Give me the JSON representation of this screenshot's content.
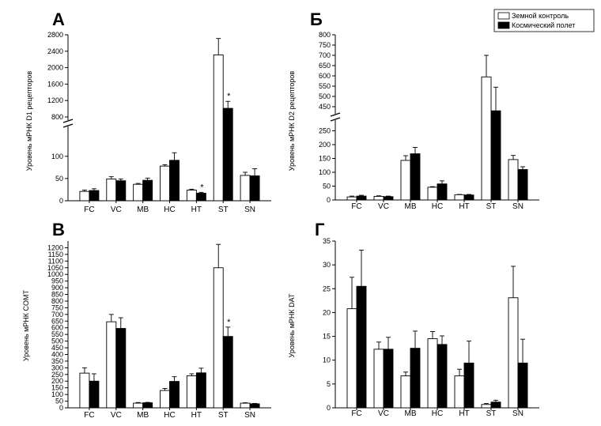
{
  "legend": {
    "items": [
      {
        "label": "Земной контроль",
        "fill": "#ffffff"
      },
      {
        "label": "Космический полет",
        "fill": "#000000"
      }
    ]
  },
  "chart_data": [
    {
      "panel": "A",
      "letter": "А",
      "type": "bar",
      "ylabel": "Уровень мРНК D1 рецепторов",
      "categories": [
        "FC",
        "VC",
        "MB",
        "HC",
        "HT",
        "ST",
        "SN"
      ],
      "axis_break": true,
      "lower_range": [
        0,
        160
      ],
      "lower_ticks": [
        0,
        50,
        100
      ],
      "upper_range": [
        800,
        2800
      ],
      "upper_ticks": [
        800,
        1200,
        1600,
        2000,
        2400,
        2800
      ],
      "series": [
        {
          "name": "Земной контроль",
          "values": [
            21,
            49,
            37,
            78,
            24,
            2310,
            57
          ],
          "errors": [
            3,
            5,
            2,
            3,
            2,
            400,
            7
          ]
        },
        {
          "name": "Космический полет",
          "values": [
            23,
            45,
            46,
            91,
            17,
            1010,
            56
          ],
          "errors": [
            4,
            4,
            5,
            17,
            2,
            170,
            16
          ]
        }
      ],
      "significance": [
        {
          "category": "HT",
          "series": 1,
          "mark": "*"
        },
        {
          "category": "ST",
          "series": 1,
          "mark": "*"
        }
      ]
    },
    {
      "panel": "B",
      "letter": "Б",
      "type": "bar",
      "ylabel": "Уровень мРНК D2 рецепторов",
      "categories": [
        "FC",
        "VC",
        "MB",
        "HC",
        "HT",
        "ST",
        "SN"
      ],
      "axis_break": true,
      "lower_range": [
        0,
        300
      ],
      "lower_ticks": [
        0,
        50,
        100,
        150,
        200,
        250
      ],
      "upper_range": [
        400,
        800
      ],
      "upper_ticks": [
        450,
        500,
        550,
        600,
        650,
        700,
        750,
        800
      ],
      "series": [
        {
          "name": "Земной контроль",
          "values": [
            11,
            13,
            143,
            46,
            19,
            595,
            146
          ],
          "errors": [
            3,
            2,
            17,
            2,
            1,
            105,
            15
          ]
        },
        {
          "name": "Космический полет",
          "values": [
            14,
            12,
            167,
            58,
            18,
            430,
            110
          ],
          "errors": [
            3,
            2,
            23,
            11,
            2,
            115,
            10
          ]
        }
      ],
      "significance": []
    },
    {
      "panel": "C",
      "letter": "В",
      "type": "bar",
      "ylabel": "Уровень мРНК COMT",
      "categories": [
        "FC",
        "VC",
        "MB",
        "HC",
        "HT",
        "ST",
        "SN"
      ],
      "axis_break": false,
      "ylim": [
        0,
        1250
      ],
      "ticks": [
        0,
        50,
        100,
        150,
        200,
        250,
        300,
        350,
        400,
        450,
        500,
        550,
        600,
        650,
        700,
        750,
        800,
        850,
        900,
        950,
        1000,
        1050,
        1100,
        1150,
        1200
      ],
      "series": [
        {
          "name": "Земной контроль",
          "values": [
            260,
            645,
            35,
            130,
            240,
            1050,
            35
          ],
          "errors": [
            40,
            55,
            5,
            15,
            15,
            175,
            3
          ]
        },
        {
          "name": "Космический полет",
          "values": [
            200,
            595,
            38,
            198,
            262,
            535,
            30
          ],
          "errors": [
            55,
            80,
            3,
            35,
            35,
            70,
            3
          ]
        }
      ],
      "significance": [
        {
          "category": "ST",
          "series": 1,
          "mark": "*"
        }
      ]
    },
    {
      "panel": "D",
      "letter": "Г",
      "type": "bar",
      "ylabel": "Уровень мРНК DAT",
      "categories": [
        "FC",
        "VC",
        "MB",
        "HC",
        "HT",
        "ST",
        "SN"
      ],
      "axis_break": false,
      "ylim": [
        0,
        35
      ],
      "ticks": [
        0,
        5,
        10,
        15,
        20,
        25,
        30,
        35
      ],
      "series": [
        {
          "name": "Земной контроль",
          "values": [
            20.8,
            12.3,
            6.7,
            14.5,
            6.7,
            0.7,
            23.1
          ],
          "errors": [
            6.6,
            1.5,
            0.8,
            1.5,
            1.4,
            0.2,
            6.6
          ]
        },
        {
          "name": "Космический полет",
          "values": [
            25.5,
            12.3,
            12.5,
            13.3,
            9.4,
            1.2,
            9.4
          ],
          "errors": [
            7.6,
            2.5,
            3.6,
            1.8,
            4.6,
            0.4,
            5.0
          ]
        }
      ],
      "significance": []
    }
  ]
}
